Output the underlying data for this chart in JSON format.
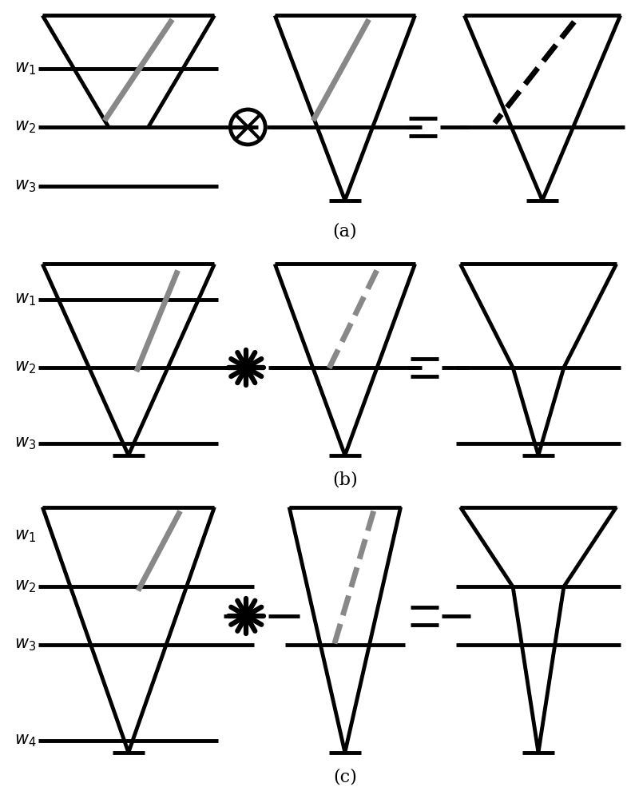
{
  "bg_color": "#ffffff",
  "line_color": "#000000",
  "gray_color": "#888888",
  "lw": 3.5,
  "glw": 5.0,
  "dlw": 5.0,
  "sections": [
    "a",
    "b",
    "c"
  ]
}
